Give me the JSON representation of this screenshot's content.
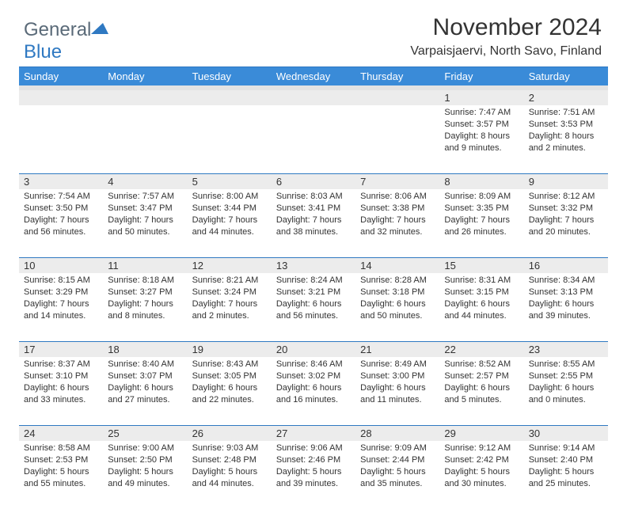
{
  "logo": {
    "word1": "General",
    "word2": "Blue"
  },
  "title": "November 2024",
  "subtitle": "Varpaisjaervi, North Savo, Finland",
  "colors": {
    "header_bg": "#3a8bd8",
    "header_text": "#ffffff",
    "accent_line": "#2f79c2",
    "numrow_bg": "#ececec",
    "weekbar_bg": "#e3e3e3",
    "body_text": "#333333",
    "logo_gray": "#5a6a78",
    "logo_blue": "#2f79c2"
  },
  "dayLabels": [
    "Sunday",
    "Monday",
    "Tuesday",
    "Wednesday",
    "Thursday",
    "Friday",
    "Saturday"
  ],
  "weeks": [
    [
      {
        "empty": true
      },
      {
        "empty": true
      },
      {
        "empty": true
      },
      {
        "empty": true
      },
      {
        "empty": true
      },
      {
        "day": "1",
        "sunrise": "Sunrise: 7:47 AM",
        "sunset": "Sunset: 3:57 PM",
        "daylight": "Daylight: 8 hours and 9 minutes."
      },
      {
        "day": "2",
        "sunrise": "Sunrise: 7:51 AM",
        "sunset": "Sunset: 3:53 PM",
        "daylight": "Daylight: 8 hours and 2 minutes."
      }
    ],
    [
      {
        "day": "3",
        "sunrise": "Sunrise: 7:54 AM",
        "sunset": "Sunset: 3:50 PM",
        "daylight": "Daylight: 7 hours and 56 minutes."
      },
      {
        "day": "4",
        "sunrise": "Sunrise: 7:57 AM",
        "sunset": "Sunset: 3:47 PM",
        "daylight": "Daylight: 7 hours and 50 minutes."
      },
      {
        "day": "5",
        "sunrise": "Sunrise: 8:00 AM",
        "sunset": "Sunset: 3:44 PM",
        "daylight": "Daylight: 7 hours and 44 minutes."
      },
      {
        "day": "6",
        "sunrise": "Sunrise: 8:03 AM",
        "sunset": "Sunset: 3:41 PM",
        "daylight": "Daylight: 7 hours and 38 minutes."
      },
      {
        "day": "7",
        "sunrise": "Sunrise: 8:06 AM",
        "sunset": "Sunset: 3:38 PM",
        "daylight": "Daylight: 7 hours and 32 minutes."
      },
      {
        "day": "8",
        "sunrise": "Sunrise: 8:09 AM",
        "sunset": "Sunset: 3:35 PM",
        "daylight": "Daylight: 7 hours and 26 minutes."
      },
      {
        "day": "9",
        "sunrise": "Sunrise: 8:12 AM",
        "sunset": "Sunset: 3:32 PM",
        "daylight": "Daylight: 7 hours and 20 minutes."
      }
    ],
    [
      {
        "day": "10",
        "sunrise": "Sunrise: 8:15 AM",
        "sunset": "Sunset: 3:29 PM",
        "daylight": "Daylight: 7 hours and 14 minutes."
      },
      {
        "day": "11",
        "sunrise": "Sunrise: 8:18 AM",
        "sunset": "Sunset: 3:27 PM",
        "daylight": "Daylight: 7 hours and 8 minutes."
      },
      {
        "day": "12",
        "sunrise": "Sunrise: 8:21 AM",
        "sunset": "Sunset: 3:24 PM",
        "daylight": "Daylight: 7 hours and 2 minutes."
      },
      {
        "day": "13",
        "sunrise": "Sunrise: 8:24 AM",
        "sunset": "Sunset: 3:21 PM",
        "daylight": "Daylight: 6 hours and 56 minutes."
      },
      {
        "day": "14",
        "sunrise": "Sunrise: 8:28 AM",
        "sunset": "Sunset: 3:18 PM",
        "daylight": "Daylight: 6 hours and 50 minutes."
      },
      {
        "day": "15",
        "sunrise": "Sunrise: 8:31 AM",
        "sunset": "Sunset: 3:15 PM",
        "daylight": "Daylight: 6 hours and 44 minutes."
      },
      {
        "day": "16",
        "sunrise": "Sunrise: 8:34 AM",
        "sunset": "Sunset: 3:13 PM",
        "daylight": "Daylight: 6 hours and 39 minutes."
      }
    ],
    [
      {
        "day": "17",
        "sunrise": "Sunrise: 8:37 AM",
        "sunset": "Sunset: 3:10 PM",
        "daylight": "Daylight: 6 hours and 33 minutes."
      },
      {
        "day": "18",
        "sunrise": "Sunrise: 8:40 AM",
        "sunset": "Sunset: 3:07 PM",
        "daylight": "Daylight: 6 hours and 27 minutes."
      },
      {
        "day": "19",
        "sunrise": "Sunrise: 8:43 AM",
        "sunset": "Sunset: 3:05 PM",
        "daylight": "Daylight: 6 hours and 22 minutes."
      },
      {
        "day": "20",
        "sunrise": "Sunrise: 8:46 AM",
        "sunset": "Sunset: 3:02 PM",
        "daylight": "Daylight: 6 hours and 16 minutes."
      },
      {
        "day": "21",
        "sunrise": "Sunrise: 8:49 AM",
        "sunset": "Sunset: 3:00 PM",
        "daylight": "Daylight: 6 hours and 11 minutes."
      },
      {
        "day": "22",
        "sunrise": "Sunrise: 8:52 AM",
        "sunset": "Sunset: 2:57 PM",
        "daylight": "Daylight: 6 hours and 5 minutes."
      },
      {
        "day": "23",
        "sunrise": "Sunrise: 8:55 AM",
        "sunset": "Sunset: 2:55 PM",
        "daylight": "Daylight: 6 hours and 0 minutes."
      }
    ],
    [
      {
        "day": "24",
        "sunrise": "Sunrise: 8:58 AM",
        "sunset": "Sunset: 2:53 PM",
        "daylight": "Daylight: 5 hours and 55 minutes."
      },
      {
        "day": "25",
        "sunrise": "Sunrise: 9:00 AM",
        "sunset": "Sunset: 2:50 PM",
        "daylight": "Daylight: 5 hours and 49 minutes."
      },
      {
        "day": "26",
        "sunrise": "Sunrise: 9:03 AM",
        "sunset": "Sunset: 2:48 PM",
        "daylight": "Daylight: 5 hours and 44 minutes."
      },
      {
        "day": "27",
        "sunrise": "Sunrise: 9:06 AM",
        "sunset": "Sunset: 2:46 PM",
        "daylight": "Daylight: 5 hours and 39 minutes."
      },
      {
        "day": "28",
        "sunrise": "Sunrise: 9:09 AM",
        "sunset": "Sunset: 2:44 PM",
        "daylight": "Daylight: 5 hours and 35 minutes."
      },
      {
        "day": "29",
        "sunrise": "Sunrise: 9:12 AM",
        "sunset": "Sunset: 2:42 PM",
        "daylight": "Daylight: 5 hours and 30 minutes."
      },
      {
        "day": "30",
        "sunrise": "Sunrise: 9:14 AM",
        "sunset": "Sunset: 2:40 PM",
        "daylight": "Daylight: 5 hours and 25 minutes."
      }
    ]
  ]
}
